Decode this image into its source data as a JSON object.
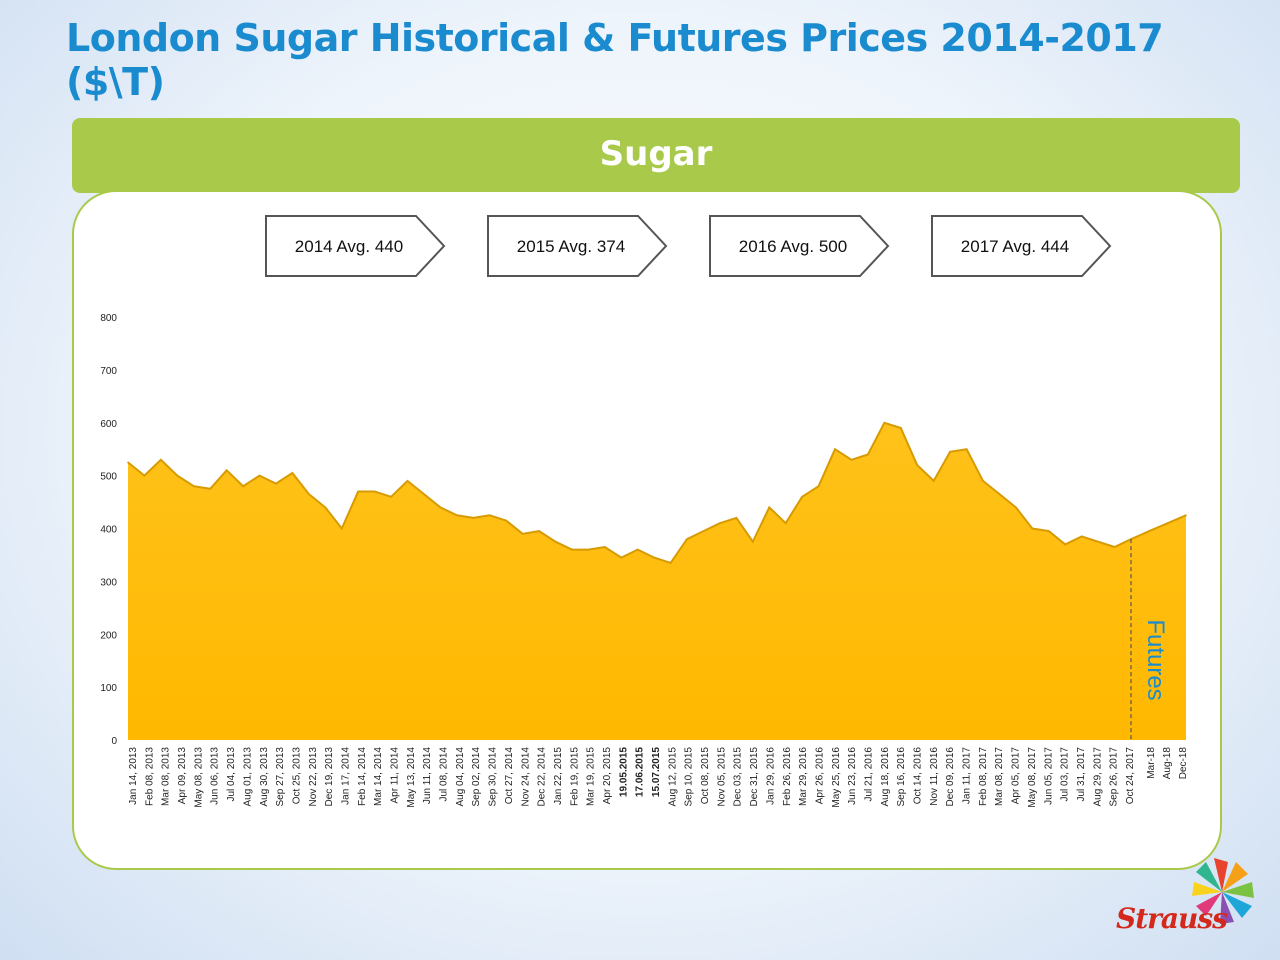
{
  "page": {
    "title": "London Sugar Historical & Futures Prices 2014-2017 ($\\T)",
    "banner_label": "Sugar",
    "logo_text": "Strauss"
  },
  "colors": {
    "title": "#1b8bd0",
    "banner": "#a8c94a",
    "area_fill": "#ffb800",
    "area_edge": "#d79a00",
    "callout_border": "#555555"
  },
  "chart_data": {
    "type": "area",
    "title": "Sugar",
    "xlabel": "",
    "ylabel": "",
    "ylim": [
      0,
      800
    ],
    "yticks": [
      0,
      100,
      200,
      300,
      400,
      500,
      600,
      700,
      800
    ],
    "grid": false,
    "date_labels": [
      "Jan 14, 2013",
      "Feb 08, 2013",
      "Mar 08, 2013",
      "Apr 09, 2013",
      "May 08, 2013",
      "Jun 06, 2013",
      "Jul 04, 2013",
      "Aug 01, 2013",
      "Aug 30, 2013",
      "Sep 27, 2013",
      "Oct 25, 2013",
      "Nov 22, 2013",
      "Dec 19, 2013",
      "Jan 17, 2014",
      "Feb 14, 2014",
      "Mar 14, 2014",
      "Apr 11, 2014",
      "May 13, 2014",
      "Jun 11, 2014",
      "Jul 08, 2014",
      "Aug 04, 2014",
      "Sep 02, 2014",
      "Sep 30, 2014",
      "Oct 27, 2014",
      "Nov 24, 2014",
      "Dec 22, 2014",
      "Jan 22, 2015",
      "Feb 19, 2015",
      "Mar 19, 2015",
      "Apr 20, 2015",
      "19.05.2015",
      "17.06.2015",
      "15.07.2015",
      "Aug 12, 2015",
      "Sep 10, 2015",
      "Oct 08, 2015",
      "Nov 05, 2015",
      "Dec 03, 2015",
      "Dec 31, 2015",
      "Jan 29, 2016",
      "Feb 26, 2016",
      "Mar 29, 2016",
      "Apr 26, 2016",
      "May 25, 2016",
      "Jun 23, 2016",
      "Jul 21, 2016",
      "Aug 18, 2016",
      "Sep 16, 2016",
      "Oct 14, 2016",
      "Nov 11, 2016",
      "Dec 09, 2016",
      "Jan 11, 2017",
      "Feb 08, 2017",
      "Mar 08, 2017",
      "Apr 05, 2017",
      "May 08, 2017",
      "Jun 05, 2017",
      "Jul 03, 2017",
      "Jul 31, 2017",
      "Aug 29, 2017",
      "Sep 26, 2017",
      "Oct 24, 2017"
    ],
    "historical_values": [
      525,
      500,
      530,
      500,
      480,
      475,
      510,
      480,
      500,
      485,
      505,
      465,
      440,
      400,
      470,
      470,
      460,
      490,
      465,
      440,
      425,
      420,
      425,
      415,
      390,
      395,
      375,
      360,
      360,
      365,
      345,
      360,
      345,
      335,
      380,
      395,
      410,
      420,
      375,
      440,
      410,
      460,
      480,
      550,
      530,
      540,
      600,
      590,
      520,
      490,
      545,
      550,
      490,
      465,
      440,
      400,
      395,
      370,
      385,
      375,
      365,
      380
    ],
    "futures_labels": [
      "Mar-18",
      "Aug-18",
      "Dec-18"
    ],
    "futures_values": [
      395,
      410,
      425
    ],
    "futures_label": "Futures",
    "annotations": [
      {
        "label": "2014 Avg. 440",
        "year": 2014,
        "avg": 440
      },
      {
        "label": "2015 Avg. 374",
        "year": 2015,
        "avg": 374
      },
      {
        "label": "2016 Avg. 500",
        "year": 2016,
        "avg": 500
      },
      {
        "label": "2017 Avg. 444",
        "year": 2017,
        "avg": 444
      }
    ]
  }
}
